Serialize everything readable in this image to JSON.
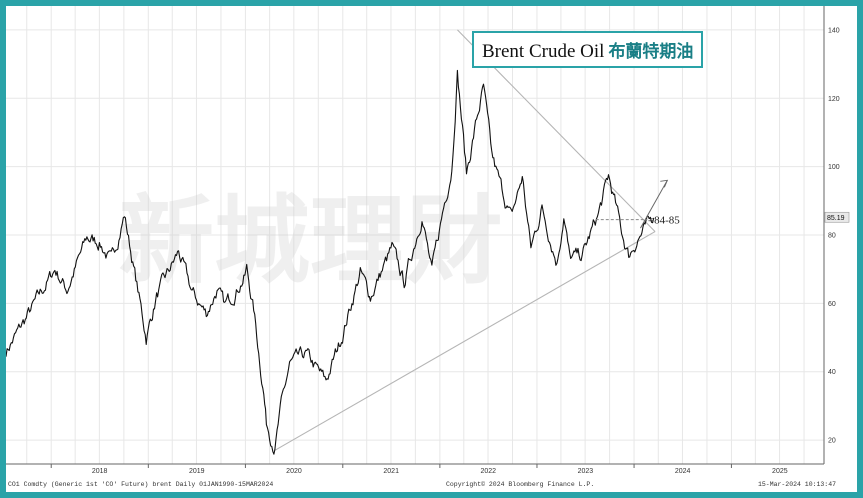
{
  "title": {
    "english": "Brent Crude Oil",
    "chinese": "布蘭特期油"
  },
  "watermark": "新城理財",
  "annotation": "84-85",
  "footer": {
    "left": "CO1 Comdty (Generic 1st 'CO' Future) brent  Daily 01JAN1990-15MAR2024",
    "center": "Copyright© 2024 Bloomberg Finance L.P.",
    "right": "15-Mar-2024 10:13:47"
  },
  "colors": {
    "frame": "#2aa3a8",
    "title_cn": "#1a7f86",
    "price_tag_bg": "#e9e9e9"
  },
  "chart_data": {
    "type": "line",
    "title": "Brent Crude Oil 布蘭特期油",
    "xlabel": "",
    "ylabel": "",
    "x_ticks": [
      "2018",
      "2019",
      "2020",
      "2021",
      "2022",
      "2023",
      "2024",
      "2025"
    ],
    "y_ticks": [
      20,
      40,
      60,
      80,
      100,
      120,
      140
    ],
    "ylim": [
      13,
      147
    ],
    "xlim": [
      "2017-07-15",
      "2025-12-15"
    ],
    "y_axis_position": "right",
    "grid": true,
    "last_price": "85.19",
    "series": [
      {
        "x": [
          "2017-07-15",
          "2017-09-01",
          "2017-11-01",
          "2018-01-15",
          "2018-03-01",
          "2018-05-15",
          "2018-07-01",
          "2018-08-15",
          "2018-10-03",
          "2018-11-15",
          "2018-12-24",
          "2019-02-01",
          "2019-04-25",
          "2019-06-15",
          "2019-08-07",
          "2019-09-16",
          "2019-10-15",
          "2019-12-30",
          "2020-01-06",
          "2020-02-01",
          "2020-03-10",
          "2020-03-20",
          "2020-04-21",
          "2020-05-15",
          "2020-06-15",
          "2020-08-15",
          "2020-10-30",
          "2020-12-31",
          "2021-03-08",
          "2021-04-15",
          "2021-07-05",
          "2021-08-20",
          "2021-10-26",
          "2021-12-02",
          "2022-01-15",
          "2022-02-15",
          "2022-03-08",
          "2022-04-11",
          "2022-05-15",
          "2022-06-14",
          "2022-07-15",
          "2022-08-15",
          "2022-09-26",
          "2022-11-07",
          "2022-12-09",
          "2023-01-20",
          "2023-03-17",
          "2023-04-12",
          "2023-05-04",
          "2023-06-20",
          "2023-07-20",
          "2023-08-20",
          "2023-09-27",
          "2023-10-20",
          "2023-11-15",
          "2023-12-12",
          "2024-01-15",
          "2024-02-15",
          "2024-03-15"
        ],
        "y": [
          46,
          52,
          60,
          70,
          64,
          79,
          78,
          72,
          86,
          67,
          50,
          62,
          75,
          63,
          57,
          64,
          59,
          68,
          70,
          58,
          34,
          25,
          18,
          30,
          42,
          45,
          37,
          51,
          69,
          62,
          76,
          66,
          86,
          69,
          88,
          100,
          128,
          98,
          112,
          123,
          103,
          95,
          85,
          97,
          76,
          88,
          72,
          86,
          73,
          74,
          80,
          86,
          97,
          90,
          81,
          74,
          79,
          82,
          85
        ]
      }
    ]
  }
}
